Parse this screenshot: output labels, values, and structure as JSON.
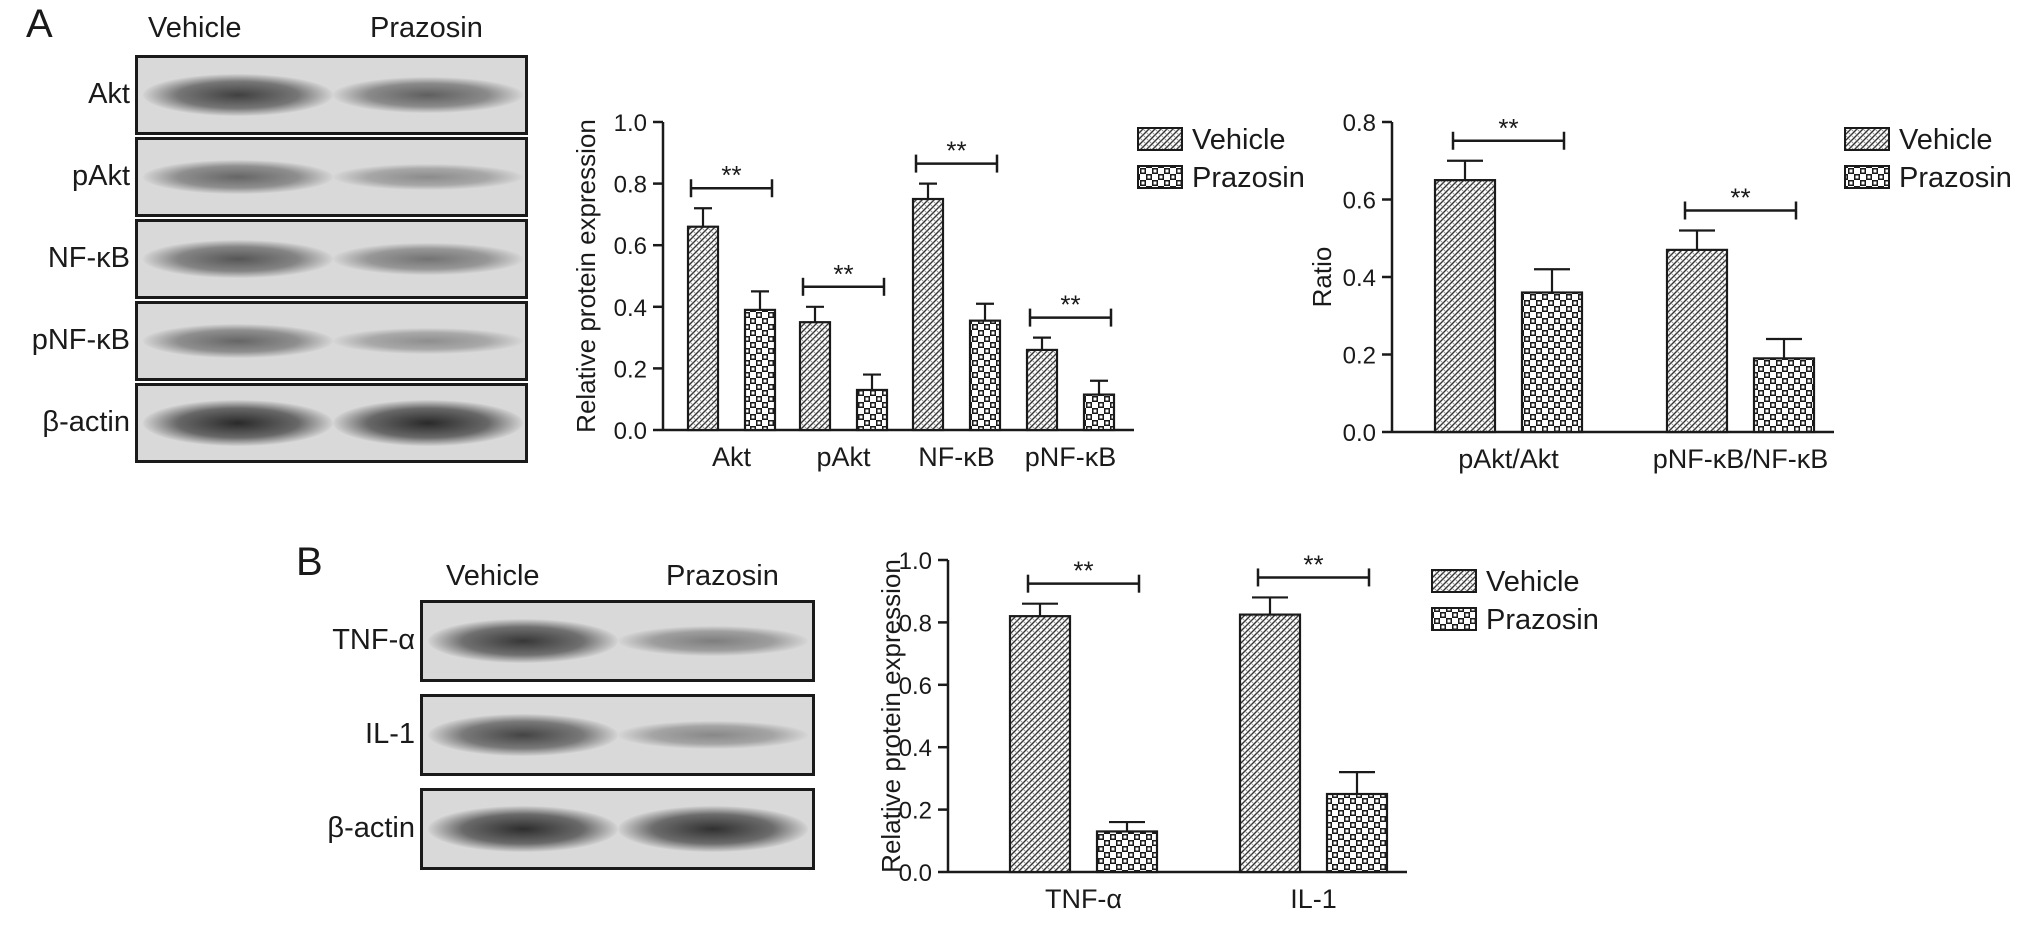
{
  "panels": {
    "a": {
      "letter": "A"
    },
    "b": {
      "letter": "B"
    }
  },
  "blot_a": {
    "col1": "Vehicle",
    "col2": "Prazosin",
    "rows": [
      {
        "label": "Akt",
        "v": 0.78,
        "p": 0.55
      },
      {
        "label": "pAkt",
        "v": 0.5,
        "p": 0.22
      },
      {
        "label": "NF-κB",
        "v": 0.62,
        "p": 0.4
      },
      {
        "label": "pNF-κB",
        "v": 0.5,
        "p": 0.2
      },
      {
        "label": "β-actin",
        "v": 0.95,
        "p": 0.95
      }
    ]
  },
  "blot_b": {
    "col1": "Vehicle",
    "col2": "Prazosin",
    "rows": [
      {
        "label": "TNF-α",
        "v": 0.85,
        "p": 0.32
      },
      {
        "label": "IL-1",
        "v": 0.75,
        "p": 0.25
      },
      {
        "label": "β-actin",
        "v": 0.92,
        "p": 0.9
      }
    ]
  },
  "chart_data": [
    {
      "type": "bar",
      "ylabel": "Relative protein expression",
      "ylim": [
        0,
        1.0
      ],
      "yticks": [
        "0.0",
        "0.2",
        "0.4",
        "0.6",
        "0.8",
        "1.0"
      ],
      "categories": [
        "Akt",
        "pAkt",
        "NF-κB",
        "pNF-κB"
      ],
      "series": [
        {
          "name": "Vehicle",
          "values": [
            0.66,
            0.35,
            0.75,
            0.26
          ],
          "errors": [
            0.06,
            0.05,
            0.05,
            0.04
          ]
        },
        {
          "name": "Prazosin",
          "values": [
            0.39,
            0.13,
            0.355,
            0.115
          ],
          "errors": [
            0.06,
            0.05,
            0.055,
            0.045
          ]
        }
      ],
      "significance": [
        "**",
        "**",
        "**",
        "**"
      ],
      "legend": "top-right"
    },
    {
      "type": "bar",
      "ylabel": "Ratio",
      "ylim": [
        0,
        0.8
      ],
      "yticks": [
        "0.0",
        "0.2",
        "0.4",
        "0.6",
        "0.8"
      ],
      "categories": [
        "pAkt/Akt",
        "pNF-κB/NF-κB"
      ],
      "series": [
        {
          "name": "Vehicle",
          "values": [
            0.65,
            0.47
          ],
          "errors": [
            0.05,
            0.05
          ]
        },
        {
          "name": "Prazosin",
          "values": [
            0.36,
            0.19
          ],
          "errors": [
            0.06,
            0.05
          ]
        }
      ],
      "significance": [
        "**",
        "**"
      ],
      "legend": "top-right"
    },
    {
      "type": "bar",
      "ylabel": "Relative protein expression",
      "ylim": [
        0,
        1.0
      ],
      "yticks": [
        "0.0",
        "0.2",
        "0.4",
        "0.6",
        "0.8",
        "1.0"
      ],
      "categories": [
        "TNF-α",
        "IL-1"
      ],
      "series": [
        {
          "name": "Vehicle",
          "values": [
            0.82,
            0.825
          ],
          "errors": [
            0.04,
            0.055
          ]
        },
        {
          "name": "Prazosin",
          "values": [
            0.13,
            0.25
          ],
          "errors": [
            0.03,
            0.07
          ]
        }
      ],
      "significance": [
        "**",
        "**"
      ],
      "legend": "top-right"
    }
  ]
}
